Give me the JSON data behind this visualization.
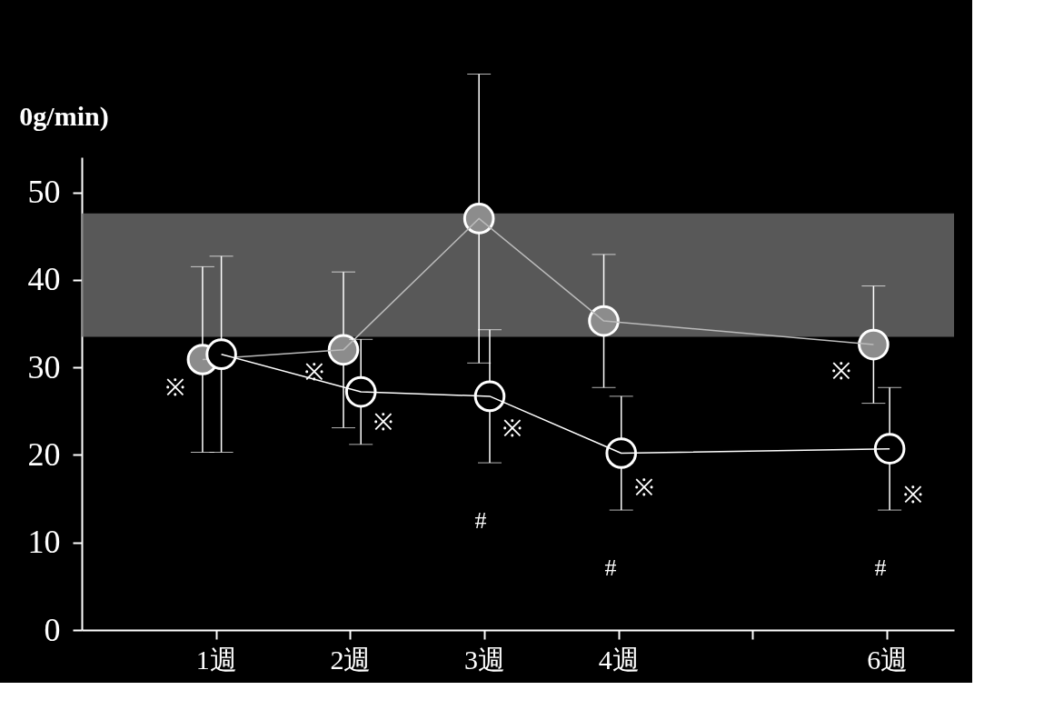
{
  "chart_data": {
    "type": "line",
    "ylabel": "0g/min)",
    "xlim": [
      0,
      6.5
    ],
    "xticks": [
      {
        "value": 1,
        "label": "1週"
      },
      {
        "value": 2,
        "label": "2週"
      },
      {
        "value": 3,
        "label": "3週"
      },
      {
        "value": 4,
        "label": "4週"
      },
      {
        "value": 5,
        "label": null
      },
      {
        "value": 6,
        "label": "6週"
      }
    ],
    "ylim": [
      0,
      54
    ],
    "yticks": [
      0,
      10,
      20,
      30,
      40,
      50
    ],
    "series": [
      {
        "color": "#8c8c8c",
        "x": [
          0.9,
          1.95,
          2.96,
          3.89,
          5.9
        ],
        "values": [
          30.9,
          32.0,
          47.0,
          35.3,
          32.6
        ],
        "errors": [
          10.6,
          8.9,
          16.5,
          7.6,
          6.7
        ]
      },
      {
        "color": "#ffffff",
        "x": [
          1.04,
          2.08,
          3.04,
          4.02,
          6.02
        ],
        "values": [
          31.5,
          27.2,
          26.7,
          20.2,
          20.7
        ],
        "errors": [
          11.2,
          6.0,
          7.6,
          6.5,
          7.0
        ]
      }
    ],
    "bands": [
      {
        "axis": "y",
        "from": 33.5,
        "to": 47.6,
        "color": "#6e6e6e"
      }
    ],
    "annotations": [
      {
        "text": "※",
        "x": 0.9,
        "y": 30.9
      },
      {
        "text": "※",
        "x": 1.95,
        "y": 32.0
      },
      {
        "text": "※",
        "x": 2.08,
        "y": 27.2
      },
      {
        "text": "※",
        "x": 3.04,
        "y": 26.7
      },
      {
        "text": "※",
        "x": 4.02,
        "y": 20.2
      },
      {
        "text": "※",
        "x": 5.9,
        "y": 32.6
      },
      {
        "text": "※",
        "x": 6.02,
        "y": 20.7
      },
      "#",
      "#",
      "#"
    ],
    "marker": "circle",
    "grid": false
  }
}
